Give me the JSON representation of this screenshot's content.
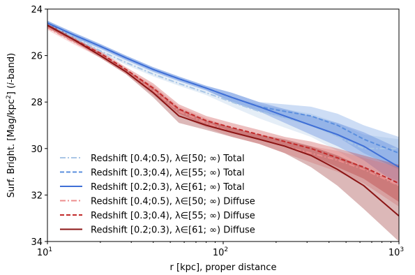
{
  "chart_data": {
    "type": "line",
    "xscale": "log",
    "xlim": [
      10,
      1000
    ],
    "ylim": [
      34,
      24
    ],
    "y_inverted": true,
    "xlabel": "r [kpc], proper distance",
    "ylabel_parts": [
      "Surf. Bright. [Mag/kpc",
      "2",
      "] (",
      "i",
      "-band)"
    ],
    "x_ticks": [
      {
        "value": 10,
        "base": "10",
        "exp": "1"
      },
      {
        "value": 100,
        "base": "10",
        "exp": "2"
      },
      {
        "value": 1000,
        "base": "10",
        "exp": "3"
      }
    ],
    "y_ticks": [
      "24",
      "26",
      "28",
      "30",
      "32",
      "34"
    ],
    "grid": false,
    "legend_position": "lower-left",
    "series": [
      {
        "name": "Redshift [0.4;0.5), λ∈[50; ∞) Total",
        "color": "#a9c6e6",
        "dash": "dashdot",
        "band": true,
        "x": [
          10,
          14,
          20,
          28,
          40,
          56,
          80,
          112,
          160,
          224,
          316,
          447,
          631,
          1000
        ],
        "y": [
          24.6,
          25.2,
          25.8,
          26.3,
          26.8,
          27.2,
          27.6,
          28.0,
          28.4,
          28.7,
          29.0,
          29.5,
          30.0,
          30.0
        ],
        "band_upper": [
          24.5,
          25.1,
          25.7,
          26.2,
          26.7,
          27.1,
          27.5,
          27.8,
          28.1,
          28.3,
          28.5,
          28.9,
          29.4,
          29.6
        ],
        "band_lower": [
          24.7,
          25.3,
          25.9,
          26.4,
          26.9,
          27.3,
          27.7,
          28.2,
          28.7,
          29.1,
          29.5,
          30.1,
          30.8,
          31.4
        ]
      },
      {
        "name": "Redshift [0.3;0.4), λ∈[55; ∞) Total",
        "color": "#5b8fde",
        "dash": "dashed",
        "band": true,
        "x": [
          10,
          14,
          20,
          28,
          40,
          56,
          80,
          112,
          160,
          224,
          316,
          447,
          631,
          1000
        ],
        "y": [
          24.6,
          25.1,
          25.6,
          26.1,
          26.6,
          27.0,
          27.4,
          27.8,
          28.2,
          28.4,
          28.6,
          29.0,
          29.6,
          30.2
        ],
        "band_upper": [
          24.5,
          25.0,
          25.5,
          26.0,
          26.5,
          26.9,
          27.3,
          27.6,
          28.0,
          28.1,
          28.2,
          28.5,
          29.0,
          29.5
        ],
        "band_lower": [
          24.7,
          25.2,
          25.7,
          26.2,
          26.7,
          27.1,
          27.5,
          28.0,
          28.4,
          28.7,
          29.0,
          29.5,
          30.2,
          30.9
        ]
      },
      {
        "name": "Redshift [0.2;0.3), λ∈[61; ∞) Total",
        "color": "#3f6fd6",
        "dash": "solid",
        "band": true,
        "x": [
          10,
          14,
          20,
          28,
          40,
          56,
          80,
          112,
          160,
          224,
          316,
          447,
          631,
          1000
        ],
        "y": [
          24.6,
          25.1,
          25.6,
          26.1,
          26.6,
          27.0,
          27.4,
          27.8,
          28.2,
          28.6,
          29.0,
          29.4,
          29.9,
          30.8
        ],
        "band_upper": [
          24.5,
          25.0,
          25.5,
          26.0,
          26.5,
          26.9,
          27.3,
          27.6,
          28.0,
          28.3,
          28.6,
          28.9,
          29.3,
          30.0
        ],
        "band_lower": [
          24.7,
          25.2,
          25.7,
          26.2,
          26.7,
          27.1,
          27.5,
          28.0,
          28.4,
          28.9,
          29.4,
          29.9,
          30.5,
          31.6
        ]
      },
      {
        "name": "Redshift [0.4;0.5), λ∈[50; ∞) Diffuse",
        "color": "#ec8c8c",
        "dash": "dashdot",
        "band": true,
        "x": [
          10,
          14,
          20,
          28,
          40,
          56,
          80,
          112,
          160,
          224,
          316,
          447,
          631,
          1000
        ],
        "y": [
          24.8,
          25.4,
          26.0,
          26.7,
          27.5,
          28.4,
          28.9,
          29.3,
          29.6,
          29.9,
          30.2,
          30.5,
          30.9,
          31.6
        ],
        "band_upper": [
          24.7,
          25.3,
          25.9,
          26.6,
          27.3,
          28.2,
          28.7,
          29.1,
          29.4,
          29.7,
          29.9,
          30.1,
          30.4,
          30.8
        ],
        "band_lower": [
          24.9,
          25.5,
          26.1,
          26.8,
          27.7,
          28.6,
          29.1,
          29.5,
          29.8,
          30.2,
          30.6,
          31.0,
          31.5,
          32.5
        ]
      },
      {
        "name": "Redshift [0.3;0.4), λ∈[55; ∞) Diffuse",
        "color": "#c22a2a",
        "dash": "dashed",
        "band": true,
        "x": [
          10,
          14,
          20,
          28,
          40,
          56,
          80,
          112,
          160,
          224,
          316,
          447,
          631,
          1000
        ],
        "y": [
          24.7,
          25.3,
          25.9,
          26.6,
          27.4,
          28.3,
          28.8,
          29.1,
          29.4,
          29.7,
          30.0,
          30.4,
          30.8,
          31.5
        ],
        "band_upper": [
          24.6,
          25.2,
          25.8,
          26.5,
          27.2,
          28.1,
          28.6,
          28.9,
          29.2,
          29.5,
          29.7,
          30.0,
          30.3,
          30.7
        ],
        "band_lower": [
          24.8,
          25.4,
          26.0,
          26.7,
          27.6,
          28.5,
          29.0,
          29.3,
          29.6,
          29.9,
          30.3,
          30.8,
          31.3,
          32.3
        ]
      },
      {
        "name": "Redshift [0.2;0.3), λ∈[61; ∞) Diffuse",
        "color": "#8b1414",
        "dash": "solid",
        "band": true,
        "x": [
          10,
          14,
          20,
          28,
          40,
          56,
          80,
          112,
          160,
          224,
          316,
          447,
          631,
          1000
        ],
        "y": [
          24.7,
          25.3,
          26.0,
          26.7,
          27.6,
          28.6,
          29.0,
          29.3,
          29.6,
          29.9,
          30.3,
          30.9,
          31.6,
          32.9
        ],
        "band_upper": [
          24.6,
          25.2,
          25.9,
          26.6,
          27.4,
          28.3,
          28.8,
          29.1,
          29.4,
          29.6,
          29.9,
          30.3,
          30.8,
          31.6
        ],
        "band_lower": [
          24.8,
          25.4,
          26.1,
          26.8,
          27.8,
          28.9,
          29.2,
          29.5,
          29.8,
          30.2,
          30.8,
          31.6,
          32.6,
          34.0
        ]
      }
    ]
  }
}
